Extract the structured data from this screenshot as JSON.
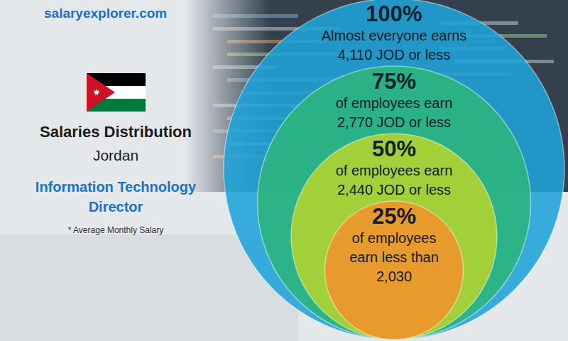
{
  "chart_data": {
    "type": "nested_circles",
    "source": "salaryexplorer.com",
    "title": "Salaries Distribution",
    "subtitle": "Jordan",
    "job_title": [
      "Information Technology",
      "Director"
    ],
    "note": "* Average Monthly Salary",
    "percentiles": [
      100,
      75,
      50,
      25
    ],
    "percentile_labels": [
      "100%",
      "75%",
      "50%",
      "25%"
    ],
    "values": [
      4110,
      2770,
      2440,
      2030
    ],
    "value_labels": [
      [
        "Almost everyone earns",
        "4,110 JOD or less"
      ],
      [
        "of employees earn",
        "2,770 JOD or less"
      ],
      [
        "of employees earn",
        "2,440 JOD or less"
      ],
      [
        "of employees",
        "earn less than",
        "2,030"
      ]
    ],
    "colors": [
      "#1fa3d9",
      "#2bb57c",
      "#b3d42e",
      "#f2922a"
    ]
  }
}
